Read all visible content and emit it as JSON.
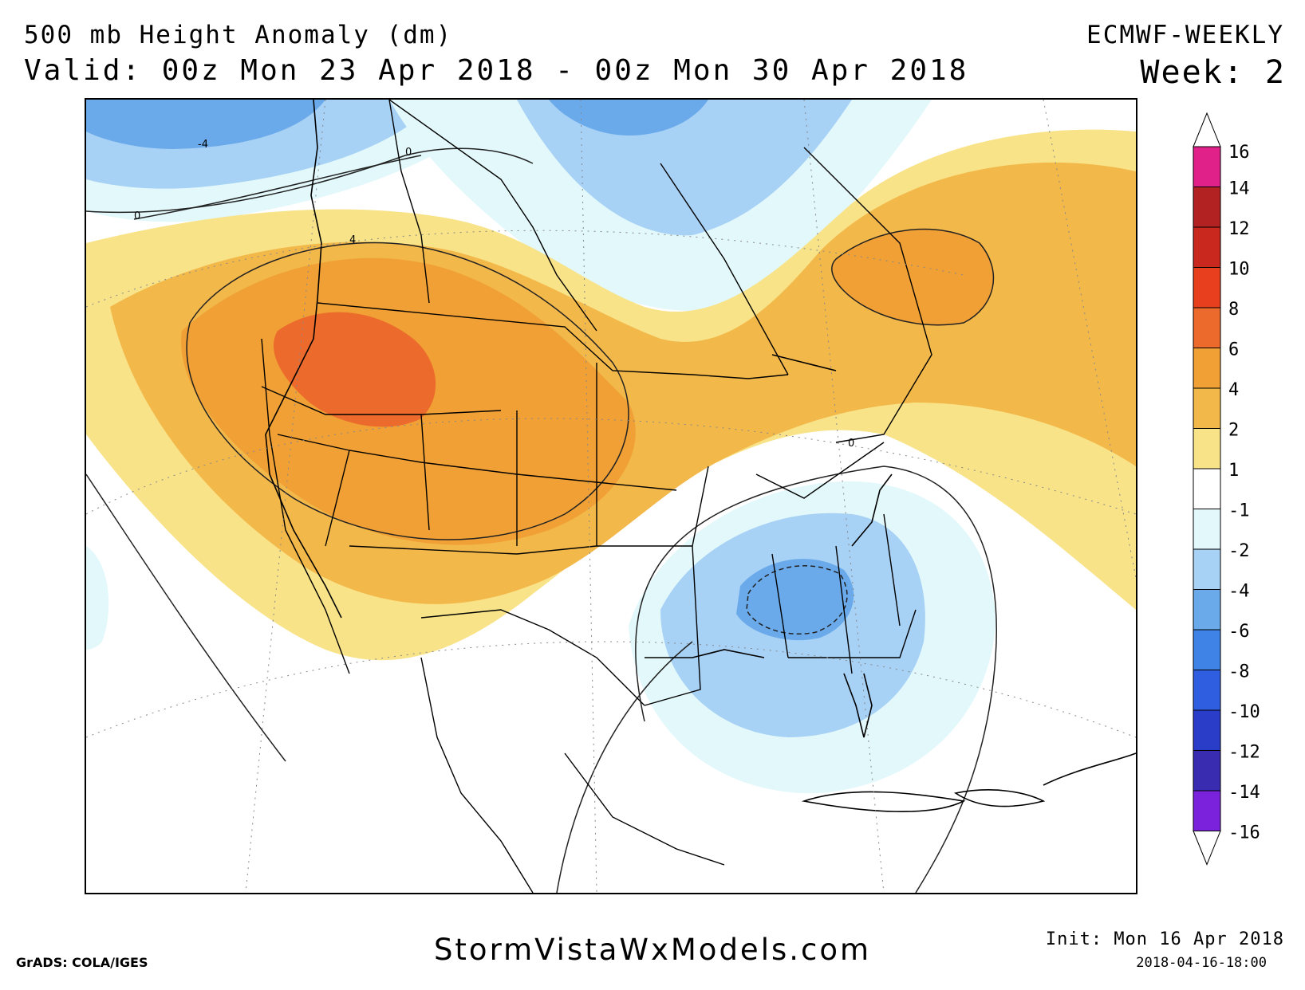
{
  "header": {
    "title": "500 mb Height Anomaly (dm)",
    "valid": "Valid: 00z Mon 23 Apr 2018 - 00z Mon 30 Apr 2018",
    "model": "ECMWF-WEEKLY",
    "week": "Week: 2"
  },
  "map": {
    "region": "North America",
    "contour_labels": [
      "-4",
      "0",
      "4",
      "0",
      "0"
    ],
    "features": {
      "positive_anomaly_west": "Pacific Northwest / Northern Rockies (max 6 to 8 dm)",
      "positive_anomaly_east": "Quebec / Labrador (4 to 6 dm)",
      "negative_anomaly_southeast": "Southeast US / Gulf of Mexico (min -4 to -6 dm)",
      "negative_anomaly_north": "Hudson Bay / Canadian Arctic (-2 to -4 dm)"
    }
  },
  "colorbar": {
    "levels": [
      "16",
      "14",
      "12",
      "10",
      "8",
      "6",
      "4",
      "2",
      "1",
      "-1",
      "-2",
      "-4",
      "-6",
      "-8",
      "-10",
      "-12",
      "-14",
      "-16"
    ],
    "colors": [
      "#e0218a",
      "#b22222",
      "#c8281e",
      "#e8401e",
      "#ec6a2c",
      "#f0a034",
      "#f3b84a",
      "#f8e388",
      "#ffffff",
      "#e2f8fb",
      "#a7d1f5",
      "#6aaaea",
      "#3f83e6",
      "#2f5fe0",
      "#2a3dc8",
      "#3a2cb0",
      "#7a22dc"
    ]
  },
  "footer": {
    "grads": "GrADS: COLA/IGES",
    "site": "StormVistaWxModels.com",
    "init": "Init: Mon 16 Apr 2018",
    "stamp": "2018-04-16-18:00"
  }
}
